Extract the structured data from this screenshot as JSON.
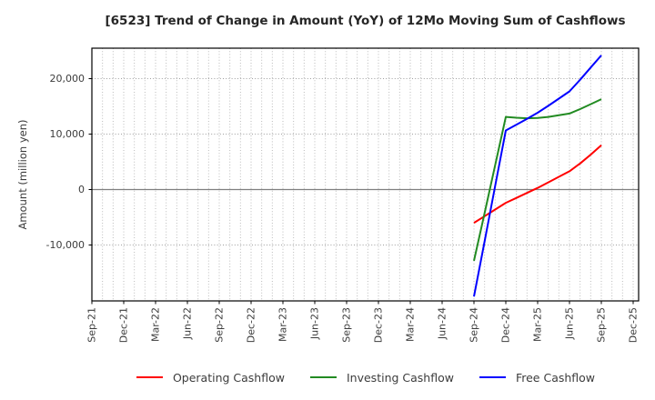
{
  "chart_data": {
    "type": "line",
    "title": "[6523]  Trend of Change in Amount (YoY) of 12Mo Moving Sum of Cashflows",
    "ylabel": "Amount (million yen)",
    "x_tick_labels": [
      "Sep-21",
      "Dec-21",
      "Mar-22",
      "Jun-22",
      "Sep-22",
      "Dec-22",
      "Mar-23",
      "Jun-23",
      "Sep-23",
      "Dec-23",
      "Mar-24",
      "Jun-24",
      "Sep-24",
      "Dec-24",
      "Mar-25",
      "Jun-25",
      "Sep-25",
      "Dec-25"
    ],
    "y_ticks": [
      -10000,
      0,
      10000,
      20000
    ],
    "ylim": [
      -20300,
      25800
    ],
    "grid": {
      "vertical": "monthly dotted",
      "horizontal": "dotted at 10000 steps",
      "zero_line": "solid gray"
    },
    "legend_position": "bottom",
    "x_months": [
      "Sep-24",
      "Oct-24",
      "Nov-24",
      "Dec-24",
      "Jan-25",
      "Feb-25",
      "Mar-25",
      "Apr-25",
      "May-25",
      "Jun-25",
      "Jul-25",
      "Aug-25",
      "Sep-25"
    ],
    "series_start_month_offset_from_first_tick": 36,
    "series": [
      {
        "name": "Operating Cashflow",
        "color": "#ff0000",
        "values": [
          -6000,
          -4800,
          -3600,
          -2400,
          -1500,
          -600,
          300,
          1300,
          2300,
          3300,
          4700,
          6300,
          8000
        ]
      },
      {
        "name": "Investing Cashflow",
        "color": "#228b22",
        "values": [
          -12850,
          -4250,
          4400,
          13100,
          12950,
          12850,
          12900,
          13100,
          13400,
          13700,
          14500,
          15400,
          16300
        ]
      },
      {
        "name": "Free Cashflow",
        "color": "#0000ff",
        "values": [
          -19300,
          -9350,
          650,
          10650,
          11700,
          12750,
          13850,
          15100,
          16400,
          17700,
          19800,
          22000,
          24200
        ]
      }
    ],
    "colors": {
      "grid": "#b3b3b3",
      "zero_line": "#7f7f7f",
      "axis_border": "#000000",
      "tick_text": "#3c3c3c"
    }
  }
}
